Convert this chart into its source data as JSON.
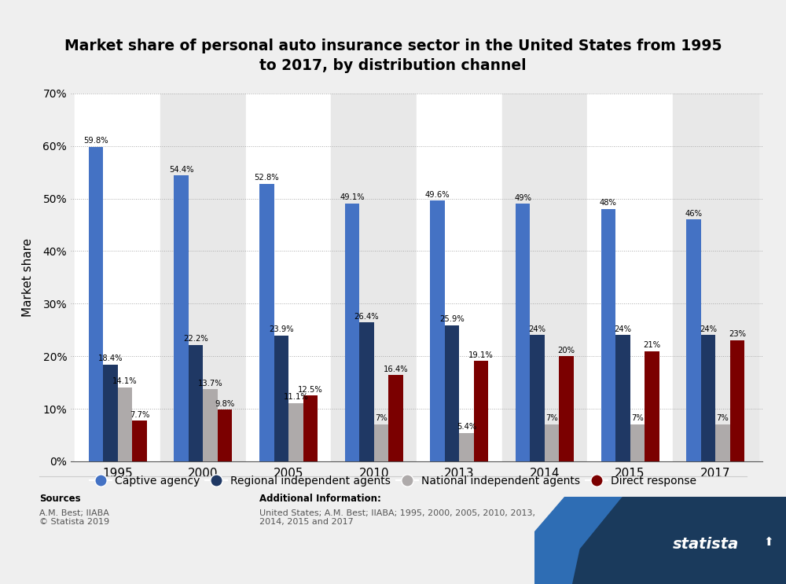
{
  "title": "Market share of personal auto insurance sector in the United States from 1995\nto 2017, by distribution channel",
  "years": [
    "1995",
    "2000",
    "2005",
    "2010",
    "2013",
    "2014",
    "2015",
    "2017"
  ],
  "captive_agency": [
    59.8,
    54.4,
    52.8,
    49.1,
    49.6,
    49.0,
    48.0,
    46.0
  ],
  "regional_independent": [
    18.4,
    22.2,
    23.9,
    26.4,
    25.9,
    24.0,
    24.0,
    24.0
  ],
  "national_independent": [
    14.1,
    13.7,
    11.1,
    7.0,
    5.4,
    7.0,
    7.0,
    7.0
  ],
  "direct_response": [
    7.7,
    9.8,
    12.5,
    16.4,
    19.1,
    20.0,
    21.0,
    23.0
  ],
  "captive_labels": [
    "59.8%",
    "54.4%",
    "52.8%",
    "49.1%",
    "49.6%",
    "49%",
    "48%",
    "46%"
  ],
  "regional_labels": [
    "18.4%",
    "22.2%",
    "23.9%",
    "26.4%",
    "25.9%",
    "24%",
    "24%",
    "24%"
  ],
  "national_labels": [
    "14.1%",
    "13.7%",
    "11.1%",
    "7%",
    "5.4%",
    "7%",
    "7%",
    "7%"
  ],
  "direct_labels": [
    "7.7%",
    "9.8%",
    "12.5%",
    "16.4%",
    "19.1%",
    "20%",
    "21%",
    "23%"
  ],
  "color_captive": "#4472C4",
  "color_regional": "#1F3864",
  "color_national": "#AEAAAA",
  "color_direct": "#7B0000",
  "bg_color": "#EFEFEF",
  "plot_bg_color_even": "#FFFFFF",
  "plot_bg_color_odd": "#E8E8E8",
  "ylabel": "Market share",
  "ylim": [
    0,
    70
  ],
  "yticks": [
    0,
    10,
    20,
    30,
    40,
    50,
    60,
    70
  ],
  "legend_labels": [
    "Captive agency",
    "Regional independent agents",
    "National independent agents",
    "Direct response"
  ],
  "source_title": "Sources",
  "source_body": "A.M. Best; IIABA\n© Statista 2019",
  "additional_title": "Additional Information:",
  "additional_body": "United States; A.M. Best; IIABA; 1995, 2000, 2005, 2010, 2013,\n2014, 2015 and 2017",
  "bar_width": 0.17,
  "logo_color_dark": "#1A3A5C",
  "logo_color_blue": "#2E6DB4"
}
